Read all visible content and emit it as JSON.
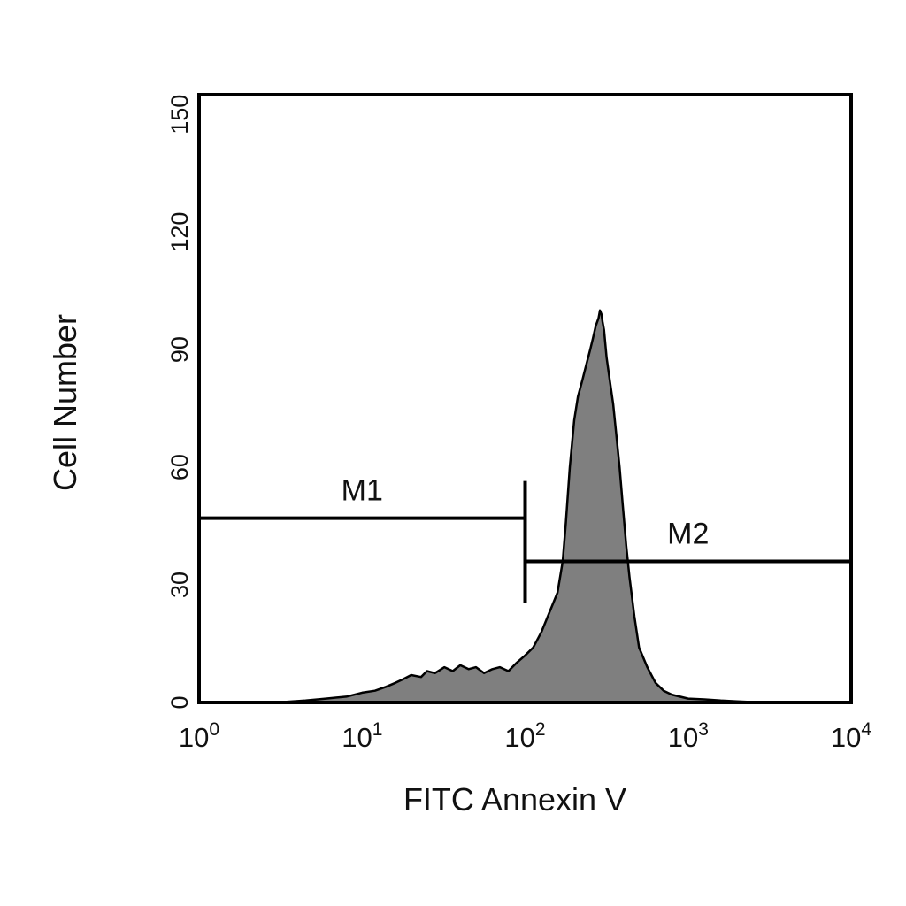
{
  "chart_data": {
    "type": "area",
    "title": "",
    "xlabel": "FITC Annexin V",
    "ylabel": "Cell Number",
    "x_scale": "log",
    "xlim": [
      1,
      10000
    ],
    "ylim": [
      0,
      155
    ],
    "grid": false,
    "legend": "none",
    "x_ticks": [
      {
        "base": "10",
        "exp": "0"
      },
      {
        "base": "10",
        "exp": "1"
      },
      {
        "base": "10",
        "exp": "2"
      },
      {
        "base": "10",
        "exp": "3"
      },
      {
        "base": "10",
        "exp": "4"
      }
    ],
    "y_ticks": [
      "0",
      "30",
      "60",
      "90",
      "120",
      "150"
    ],
    "fill_color": "#7f7f7f",
    "edge_color": "#000000",
    "series": [
      {
        "x": [
          1,
          3,
          4.5,
          6,
          8,
          10,
          12,
          14,
          16,
          18,
          20,
          23,
          25,
          28,
          32,
          36,
          40,
          45,
          50,
          56,
          63,
          70,
          79,
          88,
          100,
          112,
          126,
          141,
          158,
          170,
          178,
          188,
          200,
          211,
          224,
          237,
          251,
          261,
          271,
          282,
          288,
          294,
          299,
          305,
          316,
          331,
          347,
          363,
          380,
          398,
          417,
          437,
          468,
          500,
          562,
          631,
          708,
          794,
          891,
          1000,
          1259,
          1585,
          2000,
          2818,
          10000
        ],
        "y": [
          0,
          0,
          0.5,
          1,
          1.5,
          2.5,
          3,
          4,
          5,
          6,
          7,
          6.5,
          8,
          7.5,
          9,
          8,
          9.5,
          8.5,
          9,
          7.5,
          8.5,
          9,
          8,
          10,
          12,
          14,
          18,
          23,
          28,
          36,
          46,
          60,
          72,
          78,
          82,
          86,
          90,
          93,
          96,
          98,
          100,
          99,
          97,
          95,
          88,
          82,
          76,
          68,
          60,
          50,
          40,
          32,
          22,
          14,
          9,
          5,
          3,
          2,
          1.5,
          1,
          0.8,
          0.5,
          0.3,
          0,
          0
        ]
      }
    ],
    "markers": [
      {
        "label": "M1",
        "x_start": 1,
        "x_end": 100,
        "y": 47
      },
      {
        "label": "M2",
        "x_start": 100,
        "x_end": 10000,
        "y": 36
      }
    ]
  }
}
